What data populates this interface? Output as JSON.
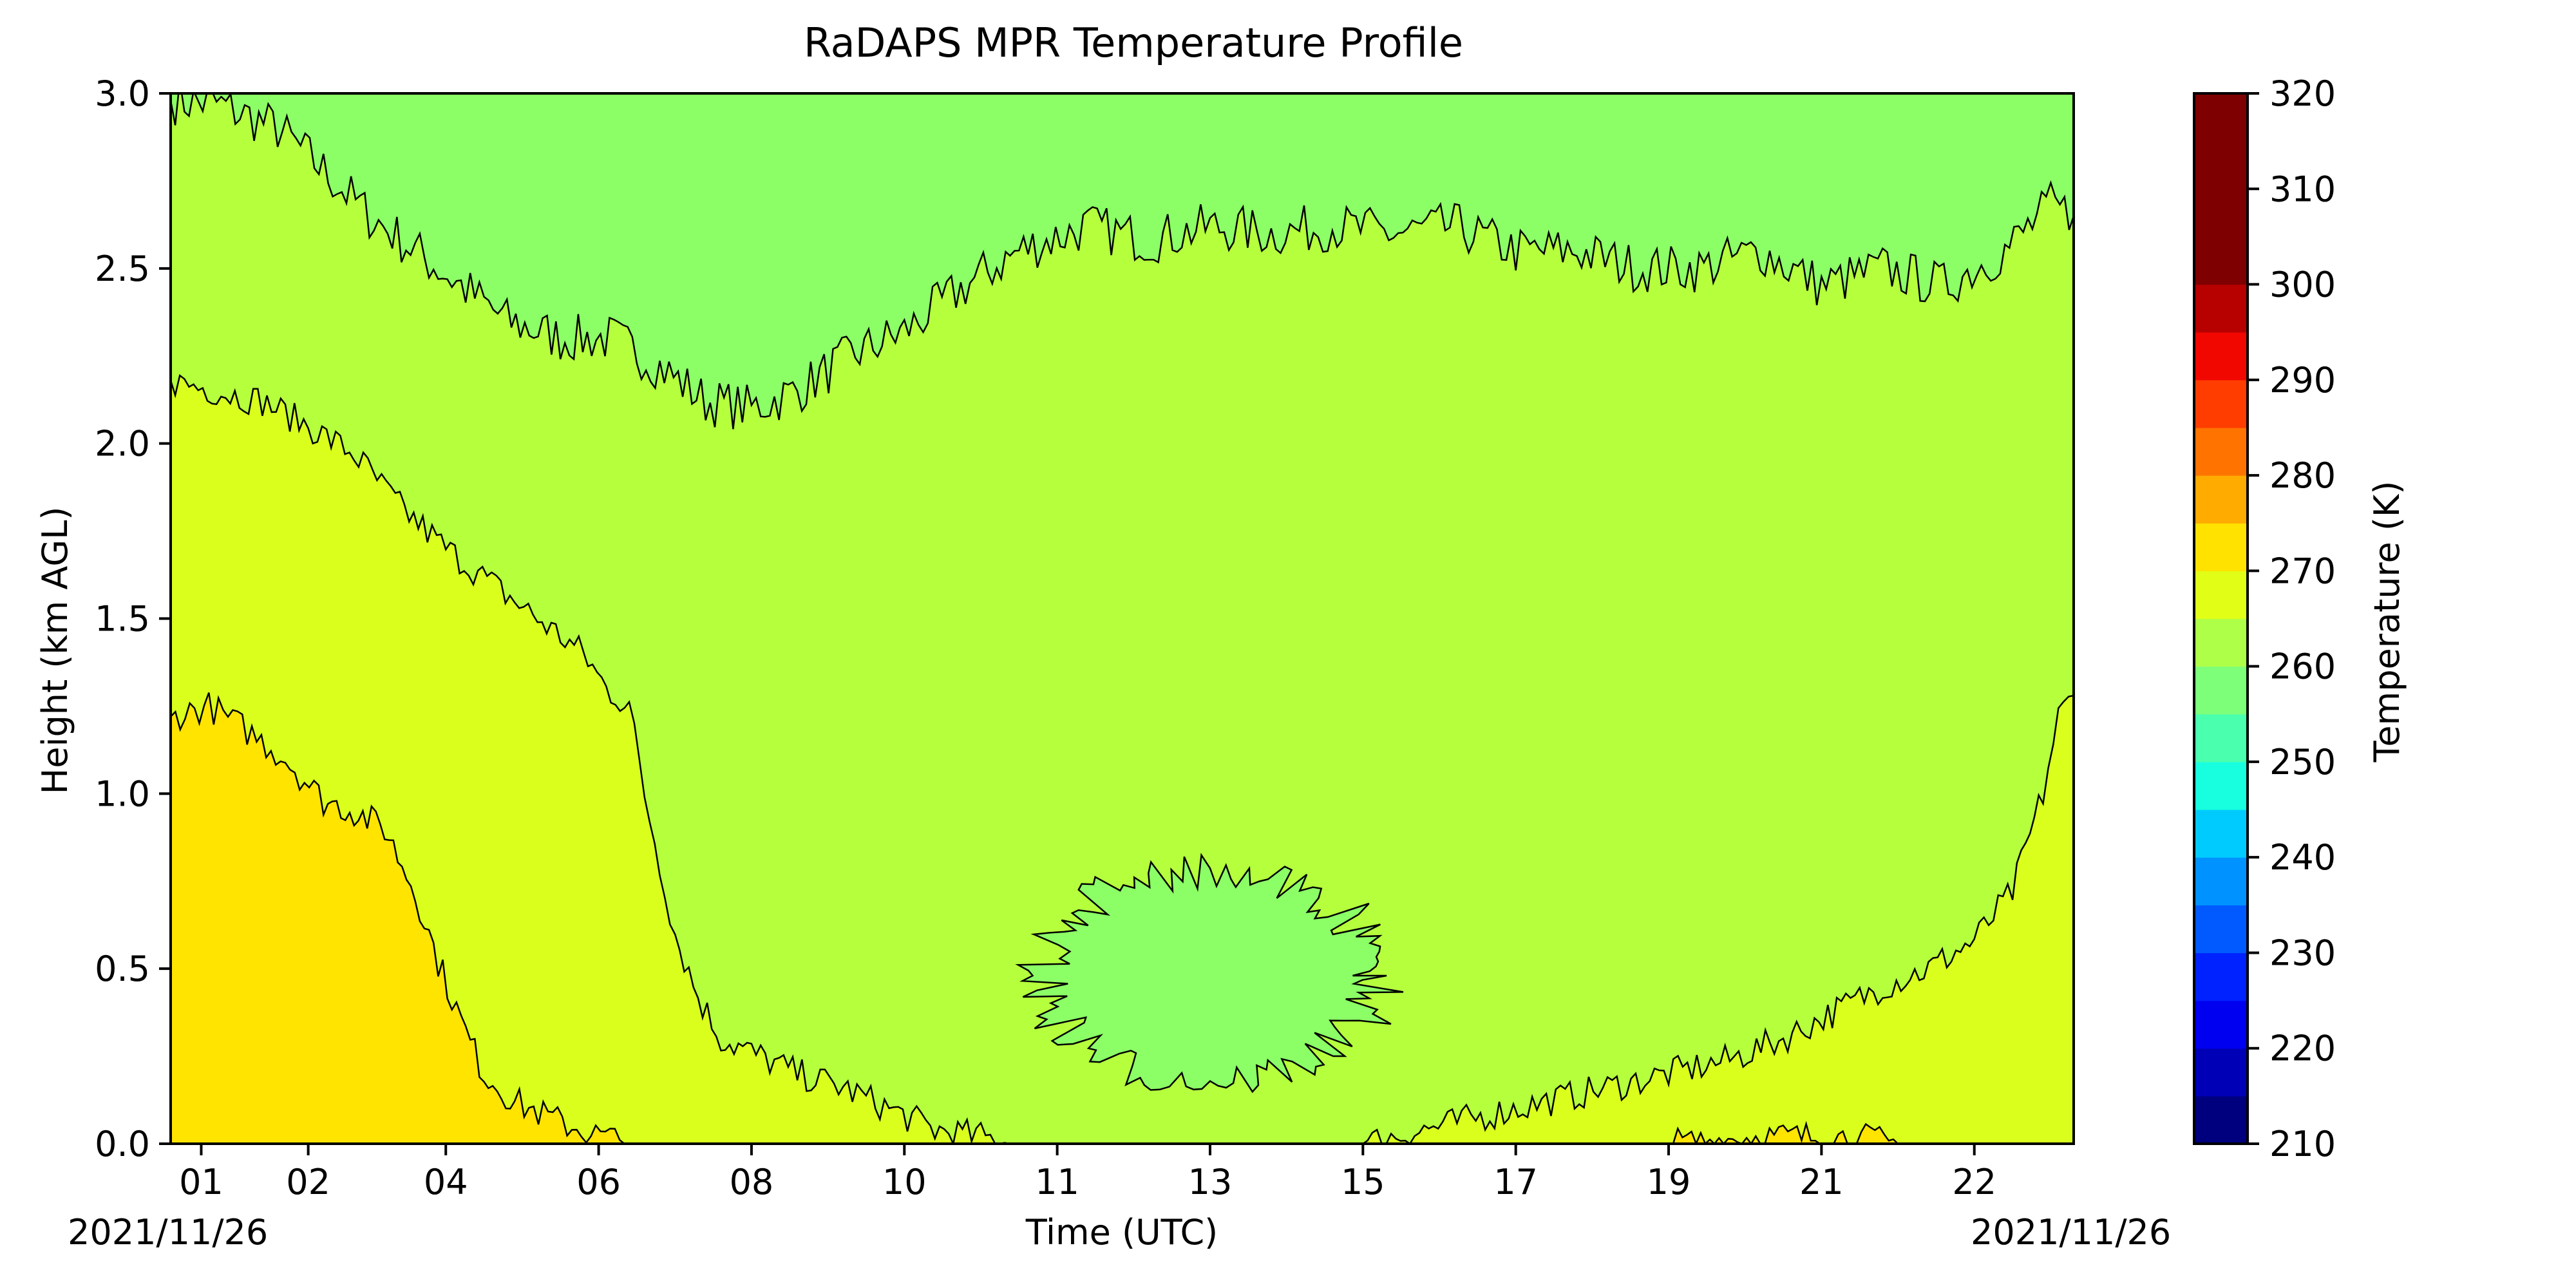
{
  "chart_data": {
    "type": "heatmap",
    "subtype": "filled-contour",
    "title": "RaDAPS MPR Temperature Profile",
    "xlabel": "Time (UTC)",
    "ylabel": "Height (km AGL)",
    "date_left": "2021/11/26",
    "date_right": "2021/11/26",
    "x_axis": {
      "ticks": [
        {
          "label": "01",
          "hour": 0.8
        },
        {
          "label": "02",
          "hour": 2.2
        },
        {
          "label": "04",
          "hour": 4.0
        },
        {
          "label": "06",
          "hour": 6.0
        },
        {
          "label": "08",
          "hour": 8.0
        },
        {
          "label": "10",
          "hour": 10.0
        },
        {
          "label": "11",
          "hour": 12.0
        },
        {
          "label": "13",
          "hour": 14.0
        },
        {
          "label": "15",
          "hour": 16.0
        },
        {
          "label": "17",
          "hour": 18.0
        },
        {
          "label": "19",
          "hour": 20.0
        },
        {
          "label": "21",
          "hour": 22.0
        },
        {
          "label": "22",
          "hour": 24.0
        }
      ],
      "range": [
        0.4,
        25.3
      ]
    },
    "ylim": [
      0.0,
      3.0
    ],
    "y_ticks": [
      "0.0",
      "0.5",
      "1.0",
      "1.5",
      "2.0",
      "2.5",
      "3.0"
    ],
    "colorbar": {
      "label": "Temperature (K)",
      "range": [
        210,
        320
      ],
      "step": 5,
      "tick_labels": [
        "210",
        "220",
        "230",
        "240",
        "250",
        "260",
        "270",
        "280",
        "290",
        "300",
        "310",
        "320"
      ],
      "colors": [
        "#00007f",
        "#0000b7",
        "#0000f1",
        "#0022ff",
        "#005aff",
        "#0092ff",
        "#00cbff",
        "#18ffdf",
        "#4affad",
        "#7dff7a",
        "#aeff48",
        "#e1ff16",
        "#ffe200",
        "#ffab00",
        "#ff7400",
        "#ff3d00",
        "#f10700",
        "#b70000",
        "#7f0000"
      ],
      "extra_top": "#7f0000"
    },
    "fill_colors": {
      "band_265_270": "#8cff66",
      "band_270_275": "#b5ff3d",
      "band_275_280": "#daff1c",
      "band_280_285": "#ffe400"
    },
    "contours": [
      {
        "level": 270,
        "points": [
          [
            0.4,
            2.98
          ],
          [
            1.0,
            2.97
          ],
          [
            1.8,
            2.9
          ],
          [
            2.4,
            2.78
          ],
          [
            3.0,
            2.65
          ],
          [
            3.6,
            2.55
          ],
          [
            4.2,
            2.45
          ],
          [
            4.8,
            2.35
          ],
          [
            5.5,
            2.3
          ],
          [
            6.2,
            2.3
          ],
          [
            6.8,
            2.22
          ],
          [
            7.4,
            2.12
          ],
          [
            8.0,
            2.1
          ],
          [
            8.6,
            2.15
          ],
          [
            9.3,
            2.25
          ],
          [
            10.0,
            2.32
          ],
          [
            10.8,
            2.45
          ],
          [
            11.5,
            2.55
          ],
          [
            12.4,
            2.62
          ],
          [
            13.2,
            2.58
          ],
          [
            14.0,
            2.62
          ],
          [
            14.8,
            2.6
          ],
          [
            15.6,
            2.62
          ],
          [
            16.4,
            2.6
          ],
          [
            17.2,
            2.62
          ],
          [
            18.0,
            2.55
          ],
          [
            18.8,
            2.55
          ],
          [
            19.6,
            2.5
          ],
          [
            20.4,
            2.5
          ],
          [
            21.2,
            2.55
          ],
          [
            22.0,
            2.45
          ],
          [
            22.8,
            2.5
          ],
          [
            23.6,
            2.45
          ],
          [
            24.4,
            2.55
          ],
          [
            25.0,
            2.68
          ],
          [
            25.3,
            2.65
          ]
        ]
      },
      {
        "level": 275,
        "points": [
          [
            0.4,
            2.18
          ],
          [
            1.0,
            2.15
          ],
          [
            1.6,
            2.12
          ],
          [
            2.2,
            2.05
          ],
          [
            2.8,
            1.97
          ],
          [
            3.4,
            1.82
          ],
          [
            4.0,
            1.7
          ],
          [
            4.6,
            1.6
          ],
          [
            5.2,
            1.5
          ],
          [
            5.8,
            1.4
          ],
          [
            6.1,
            1.3
          ],
          [
            6.4,
            1.25
          ],
          [
            6.6,
            1.0
          ],
          [
            6.8,
            0.8
          ],
          [
            7.0,
            0.6
          ],
          [
            7.3,
            0.42
          ],
          [
            7.6,
            0.3
          ],
          [
            8.0,
            0.26
          ],
          [
            8.6,
            0.2
          ],
          [
            9.2,
            0.16
          ],
          [
            9.8,
            0.1
          ],
          [
            10.4,
            0.04
          ],
          [
            11.0,
            0.02
          ],
          [
            11.5,
            0.0
          ]
        ]
      },
      {
        "level": 275,
        "points": [
          [
            16.0,
            0.0
          ],
          [
            16.8,
            0.04
          ],
          [
            17.6,
            0.08
          ],
          [
            18.4,
            0.12
          ],
          [
            19.2,
            0.16
          ],
          [
            20.0,
            0.2
          ],
          [
            20.8,
            0.24
          ],
          [
            21.5,
            0.3
          ],
          [
            22.2,
            0.38
          ],
          [
            22.8,
            0.45
          ],
          [
            23.4,
            0.5
          ],
          [
            24.0,
            0.58
          ],
          [
            24.5,
            0.72
          ],
          [
            24.9,
            1.0
          ],
          [
            25.1,
            1.22
          ],
          [
            25.3,
            1.28
          ]
        ]
      },
      {
        "level": 280,
        "points": [
          [
            0.4,
            1.22
          ],
          [
            0.9,
            1.25
          ],
          [
            1.4,
            1.18
          ],
          [
            1.9,
            1.1
          ],
          [
            2.4,
            0.98
          ],
          [
            2.8,
            0.95
          ],
          [
            3.2,
            0.9
          ],
          [
            3.6,
            0.72
          ],
          [
            3.9,
            0.52
          ],
          [
            4.2,
            0.35
          ],
          [
            4.5,
            0.2
          ],
          [
            4.9,
            0.12
          ],
          [
            5.4,
            0.07
          ],
          [
            5.9,
            0.03
          ],
          [
            6.4,
            0.0
          ]
        ]
      },
      {
        "level": 280,
        "points": [
          [
            20.0,
            0.0
          ],
          [
            20.6,
            0.01
          ],
          [
            21.2,
            0.02
          ],
          [
            21.8,
            0.02
          ],
          [
            22.4,
            0.02
          ],
          [
            23.0,
            0.0
          ]
        ]
      }
    ],
    "cold_pool_270": {
      "center_hour": 14.0,
      "center_km": 0.48,
      "half_width_h": 2.2,
      "half_height_km": 0.3
    },
    "fill_regions": [
      {
        "from_level": 270,
        "to_level": 275,
        "band": "band_270_275"
      },
      {
        "from_level": 275,
        "to_level": 280,
        "band": "band_275_280"
      },
      {
        "from_level": 280,
        "to_level": 285,
        "band": "band_280_285"
      }
    ]
  }
}
